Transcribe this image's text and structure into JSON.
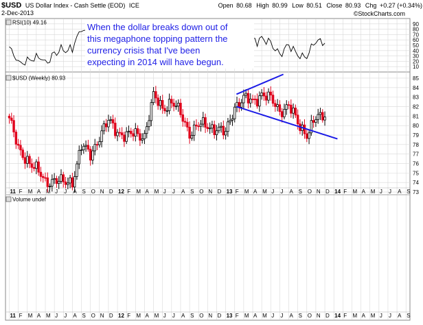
{
  "header": {
    "symbol": "$USD",
    "name": "US Dollar Index - Cash Settle (EOD)",
    "exchange": "ICE",
    "date": "2-Dec-2013",
    "open_label": "Open",
    "open": "80.68",
    "high_label": "High",
    "high": "80.99",
    "low_label": "Low",
    "low": "80.51",
    "close_label": "Close",
    "close": "80.93",
    "chg_label": "Chg",
    "chg": "+0.27 (+0.34%)",
    "watermark": "©StockCharts.com"
  },
  "annotation": {
    "lines": [
      "When the dollar breaks down out of",
      "this megaphone topping pattern the",
      "currency crisis that I've been",
      "expecting in 2014 will have begun."
    ]
  },
  "colors": {
    "up": "#000000",
    "down": "#e0001b",
    "trendline": "#1a1ae6",
    "panel_bg": "#ffffff",
    "grid": "#d8d8d8",
    "rsi_line": "#000000",
    "annotation_text": "#2020e6"
  },
  "chart_data": {
    "type": "candlestick",
    "panels": [
      {
        "name": "rsi",
        "label": "RSI(10) 49.16",
        "ylim": [
          0,
          100
        ],
        "yticks": [
          90,
          80,
          70,
          60,
          50,
          40,
          30,
          20,
          10
        ]
      },
      {
        "name": "price",
        "label": "$USD (Weekly) 80.93",
        "ylim": [
          72.5,
          85.5
        ],
        "yticks": [
          85,
          84,
          83,
          82,
          81,
          80,
          79,
          78,
          77,
          76,
          75,
          74,
          73
        ]
      },
      {
        "name": "volume",
        "label": "Volume undef"
      }
    ],
    "x_month_labels": [
      "11",
      "F",
      "M",
      "A",
      "M",
      "J",
      "J",
      "A",
      "S",
      "O",
      "N",
      "D",
      "12",
      "F",
      "M",
      "A",
      "M",
      "J",
      "J",
      "A",
      "S",
      "O",
      "N",
      "D",
      "13",
      "F",
      "M",
      "A",
      "M",
      "J",
      "J",
      "A",
      "S",
      "O",
      "N",
      "D",
      "14",
      "F",
      "M",
      "A",
      "M",
      "J",
      "J",
      "A",
      "S"
    ],
    "monthly_close": [
      80.8,
      77.4,
      76.5,
      75.3,
      74.1,
      74.3,
      73.9,
      74.2,
      77.8,
      76.9,
      78.9,
      80.4,
      79.4,
      78.9,
      79.1,
      79.0,
      83.0,
      81.9,
      82.5,
      81.2,
      79.3,
      80.0,
      80.0,
      79.7,
      79.1,
      82.1,
      82.8,
      82.5,
      83.4,
      82.7,
      81.6,
      82.1,
      80.2,
      79.2,
      80.7,
      80.9
    ],
    "trendlines": [
      {
        "from": {
          "month_index": 25.2,
          "value": 83.3
        },
        "to": {
          "month_index": 30.4,
          "value": 85.4
        }
      },
      {
        "from": {
          "month_index": 25.2,
          "value": 82.0
        },
        "to": {
          "month_index": 36.4,
          "value": 78.6
        }
      }
    ]
  }
}
